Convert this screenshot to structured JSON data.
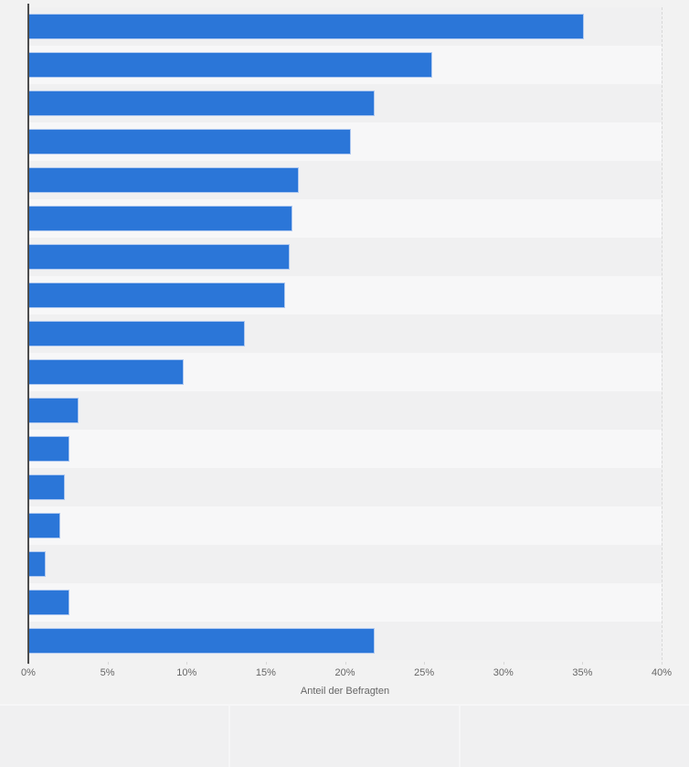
{
  "chart_data": {
    "type": "bar",
    "orientation": "horizontal",
    "title": "",
    "xlabel": "Anteil der Befragten",
    "ylabel": "",
    "xlim": [
      0,
      40
    ],
    "x_tick_labels": [
      "0%",
      "5%",
      "10%",
      "15%",
      "20%",
      "25%",
      "30%",
      "35%",
      "40%"
    ],
    "values": [
      35.1,
      25.5,
      21.9,
      20.4,
      17.1,
      16.7,
      16.5,
      16.2,
      13.7,
      9.8,
      3.2,
      2.6,
      2.3,
      2.0,
      1.1,
      2.6,
      21.9
    ],
    "bar_count": 17,
    "category_labels_visible": false,
    "legend": false,
    "grid": "vertical-dashed",
    "row_stripes": true
  },
  "style": {
    "bar_color": "#2b76d8",
    "bar_border_color": "#aec8f0",
    "stripe_dark": "#f0f0f1",
    "stripe_light": "#f7f7f8",
    "gridline_color": "#d8d8d8",
    "axis_line_color": "#4d4d4d",
    "tick_label_color": "#666666",
    "page_background": "#f2f2f2",
    "footer_panel_color": "#f0f0f1",
    "footer_seam_color": "#f6f6f7"
  },
  "footer": {
    "panel_count": 3
  }
}
